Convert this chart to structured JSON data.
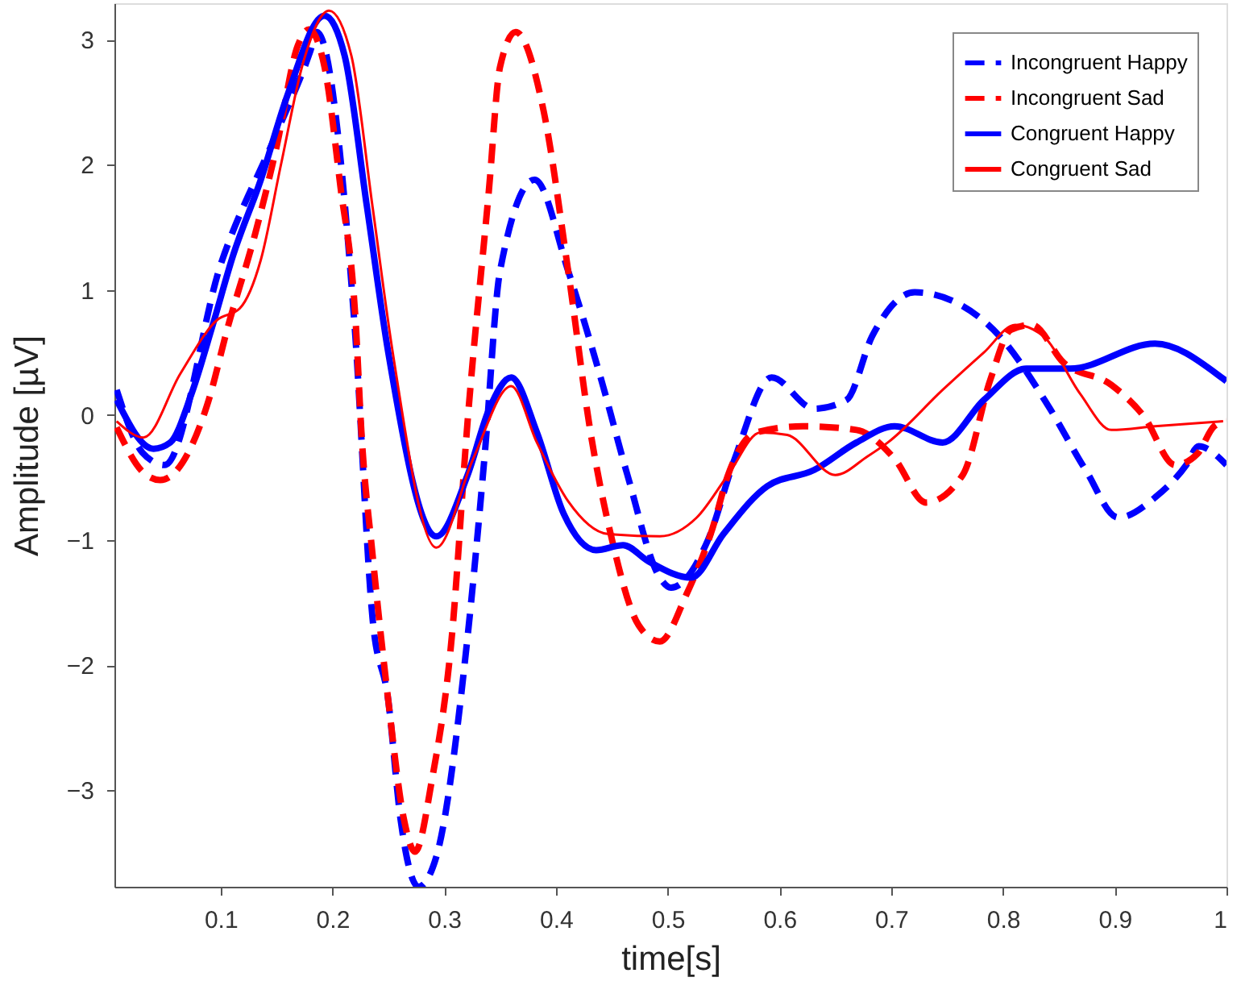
{
  "chart_data": {
    "type": "line",
    "xlabel": "time[s]",
    "ylabel": "Amplitude [µV]",
    "xlim": [
      0.005,
      1
    ],
    "ylim": [
      -3.77,
      3.29
    ],
    "xticks": [
      0.1,
      0.2,
      0.3,
      0.4,
      0.5,
      0.6,
      0.7,
      0.8,
      0.9,
      1
    ],
    "yticks": [
      -3,
      -2,
      -1,
      0,
      1,
      2,
      3
    ],
    "grid": false,
    "legend": "top right",
    "marker": "none",
    "series": [
      {
        "name": "Incongruent Happy",
        "color": "#0000ff",
        "line_style": "dashed",
        "x": [
          0.007,
          0.03,
          0.05,
          0.1,
          0.15,
          0.18,
          0.186,
          0.22,
          0.236,
          0.25,
          0.261,
          0.277,
          0.293,
          0.321,
          0.336,
          0.35,
          0.381,
          0.411,
          0.44,
          0.464,
          0.493,
          0.503,
          0.536,
          0.56,
          0.593,
          0.631,
          0.66,
          0.683,
          0.721,
          0.76,
          0.797,
          0.84,
          0.874,
          0.903,
          0.936,
          0.964,
          0.975,
          1.0
        ],
        "values": [
          0.2,
          -0.3,
          -0.4,
          1.2,
          2.25,
          2.9,
          3.06,
          0.7,
          -1.63,
          -2.28,
          -3.23,
          -3.77,
          -3.53,
          -1.77,
          -0.35,
          1.15,
          1.88,
          1.15,
          0.3,
          -0.48,
          -1.3,
          -1.38,
          -1.0,
          -0.35,
          0.3,
          0.05,
          0.12,
          0.63,
          0.98,
          0.89,
          0.63,
          0.08,
          -0.44,
          -0.82,
          -0.66,
          -0.4,
          -0.25,
          -0.4
        ]
      },
      {
        "name": "Incongruent Sad",
        "color": "#ff0000",
        "line_style": "dashed",
        "x": [
          0.007,
          0.031,
          0.046,
          0.088,
          0.107,
          0.131,
          0.15,
          0.169,
          0.179,
          0.193,
          0.207,
          0.221,
          0.226,
          0.236,
          0.25,
          0.264,
          0.274,
          0.289,
          0.307,
          0.321,
          0.34,
          0.35,
          0.364,
          0.389,
          0.411,
          0.431,
          0.45,
          0.474,
          0.493,
          0.517,
          0.54,
          0.554,
          0.579,
          0.621,
          0.669,
          0.703,
          0.731,
          0.764,
          0.789,
          0.807,
          0.826,
          0.854,
          0.897,
          0.926,
          0.954,
          0.974,
          0.989,
          1.0
        ],
        "values": [
          -0.1,
          -0.46,
          -0.52,
          0.08,
          0.72,
          1.45,
          2.14,
          2.95,
          3.08,
          2.78,
          1.84,
          0.72,
          -0.14,
          -1.12,
          -2.28,
          -3.23,
          -3.49,
          -2.92,
          -1.76,
          -0.05,
          1.79,
          2.78,
          3.06,
          2.43,
          1.15,
          -0.14,
          -0.99,
          -1.68,
          -1.81,
          -1.43,
          -0.91,
          -0.48,
          -0.14,
          -0.09,
          -0.12,
          -0.35,
          -0.7,
          -0.48,
          0.29,
          0.68,
          0.72,
          0.42,
          0.24,
          -0.01,
          -0.4,
          -0.31,
          -0.09,
          -0.05
        ]
      },
      {
        "name": "Congruent Happy",
        "color": "#0000ff",
        "line_style": "solid",
        "x": [
          0.007,
          0.04,
          0.055,
          0.074,
          0.093,
          0.111,
          0.136,
          0.16,
          0.193,
          0.211,
          0.231,
          0.25,
          0.293,
          0.321,
          0.34,
          0.36,
          0.383,
          0.407,
          0.436,
          0.46,
          0.483,
          0.521,
          0.55,
          0.589,
          0.631,
          0.669,
          0.703,
          0.746,
          0.783,
          0.821,
          0.86,
          0.936,
          0.997,
          1.0
        ],
        "values": [
          0.12,
          -0.27,
          -0.22,
          0.17,
          0.72,
          1.27,
          1.88,
          2.56,
          3.19,
          2.87,
          1.66,
          0.5,
          -0.97,
          -0.48,
          0.04,
          0.3,
          -0.14,
          -0.79,
          -1.08,
          -1.04,
          -1.17,
          -1.3,
          -0.95,
          -0.57,
          -0.44,
          -0.22,
          -0.09,
          -0.22,
          0.12,
          0.37,
          0.37,
          0.57,
          0.29,
          0.27
        ]
      },
      {
        "name": "Congruent Sad",
        "color": "#ff0000",
        "line_style": "solid",
        "x": [
          0.007,
          0.031,
          0.064,
          0.097,
          0.117,
          0.136,
          0.154,
          0.174,
          0.197,
          0.217,
          0.236,
          0.254,
          0.293,
          0.326,
          0.36,
          0.383,
          0.411,
          0.446,
          0.493,
          0.526,
          0.554,
          0.583,
          0.607,
          0.65,
          0.679,
          0.697,
          0.746,
          0.783,
          0.811,
          0.836,
          0.869,
          0.897,
          0.936,
          0.997
        ],
        "values": [
          -0.05,
          -0.18,
          0.33,
          0.76,
          0.85,
          1.24,
          2.0,
          2.82,
          3.23,
          2.87,
          1.66,
          0.5,
          -1.06,
          -0.35,
          0.23,
          -0.22,
          -0.69,
          -0.95,
          -0.97,
          -0.82,
          -0.48,
          -0.14,
          -0.16,
          -0.48,
          -0.33,
          -0.22,
          0.2,
          0.5,
          0.72,
          0.63,
          0.17,
          -0.12,
          -0.09,
          -0.05
        ]
      }
    ]
  }
}
